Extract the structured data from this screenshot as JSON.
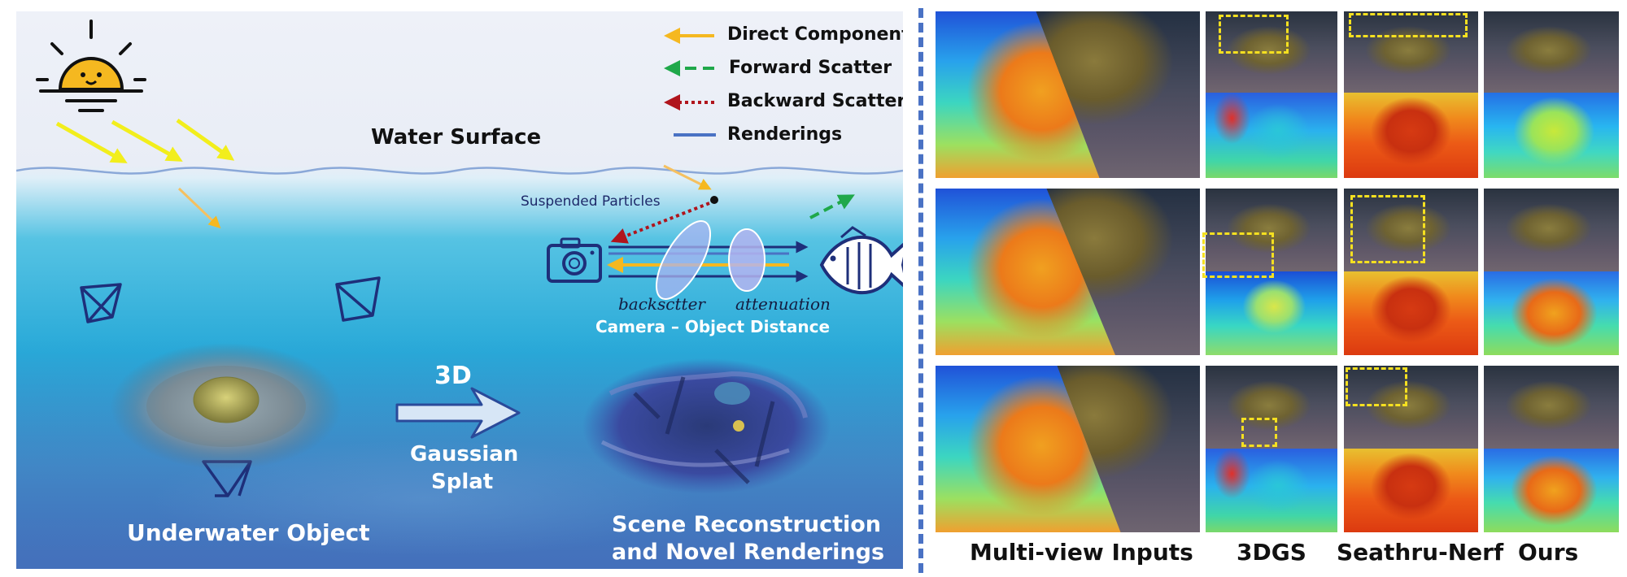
{
  "left": {
    "legend": [
      {
        "label": "Direct Component",
        "color": "#f5b820",
        "style": "solid"
      },
      {
        "label": "Forward Scatter",
        "color": "#1fa84a",
        "style": "dashed"
      },
      {
        "label": "Backward Scatter",
        "color": "#b0141c",
        "style": "dotted"
      },
      {
        "label": "Renderings",
        "color": "#4a72c4",
        "style": "solid"
      }
    ],
    "water_surface": "Water Surface",
    "suspended_particles": "Suspended Particles",
    "backscatter": "backsctter",
    "attenuation": "attenuation",
    "camera_object_distance": "Camera – Object Distance",
    "arrow_3d": "3D",
    "gaussian_splat": [
      "Gaussian",
      "Splat"
    ],
    "underwater_object": "Underwater Object",
    "scene_reconstruction": [
      "Scene Reconstruction",
      "and Novel Renderings"
    ]
  },
  "right": {
    "column_labels": [
      "Multi-view Inputs",
      "3DGS",
      "Seathru-Nerf",
      "Ours"
    ]
  },
  "colors": {
    "divider": "#4a72c4",
    "highlight_box": "#f5e020",
    "icon_stroke": "#1e2f7a",
    "sun": "#f5b820"
  },
  "icons": [
    "sun-icon",
    "camera-icon",
    "fish-icon",
    "camera-frustum-icon"
  ]
}
